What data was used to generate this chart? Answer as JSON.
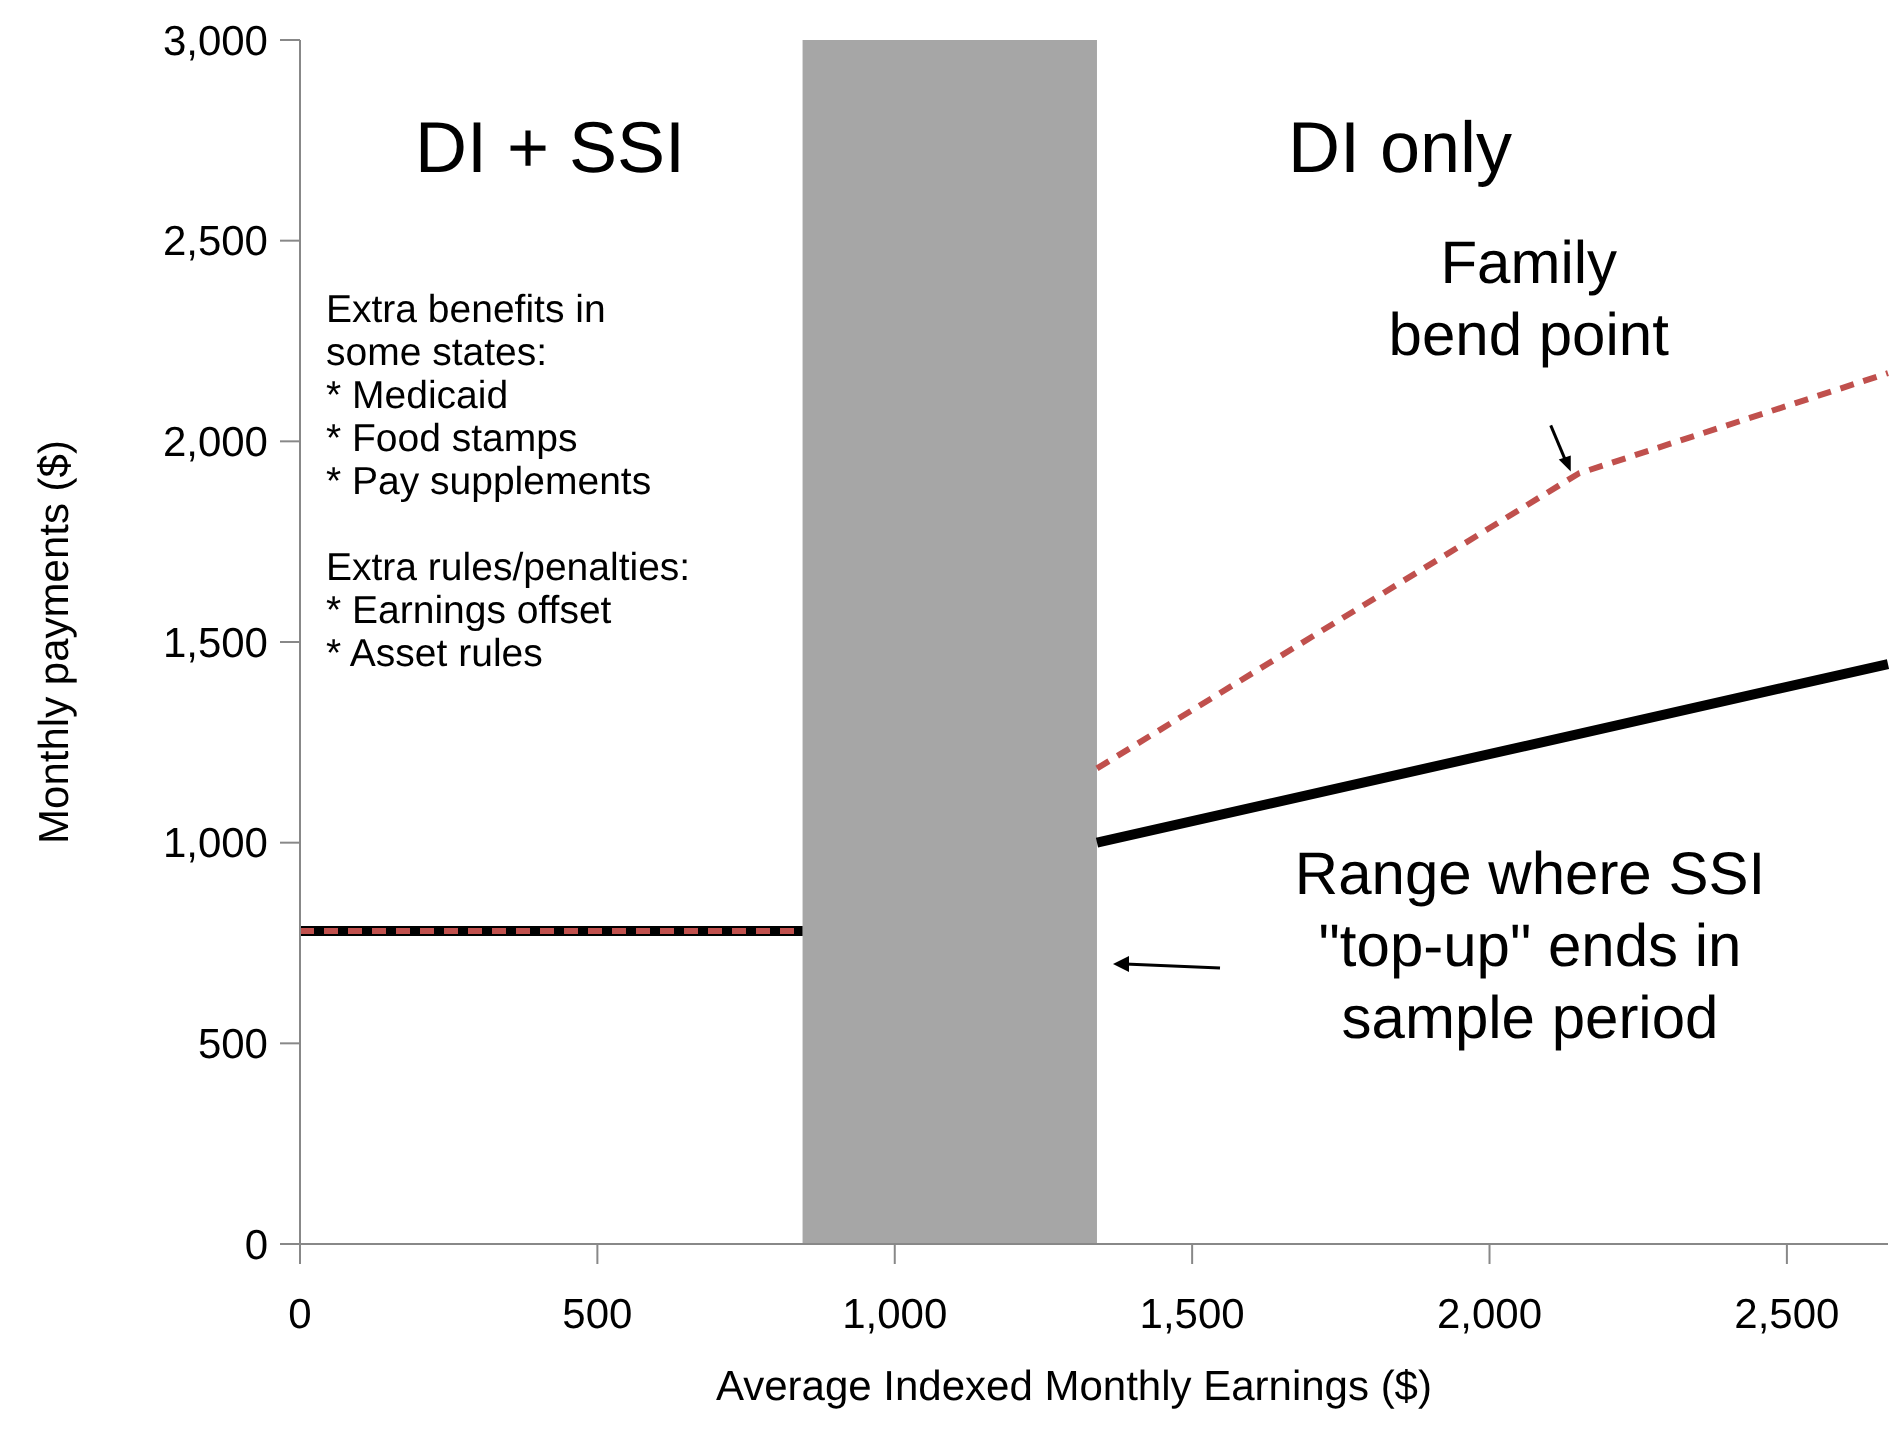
{
  "chart_data": {
    "type": "line",
    "xlabel": "Average Indexed Monthly Earnings ($)",
    "ylabel": "Monthly payments ($)",
    "xlim": [
      0,
      2670
    ],
    "xticks": [
      0,
      500,
      {
        "value": 1000,
        "label": "1,000"
      },
      {
        "value": 1500,
        "label": "1,500"
      },
      {
        "value": 2000,
        "label": "2,000"
      },
      {
        "value": 2500,
        "label": "2,500"
      }
    ],
    "ylim": [
      0,
      3000
    ],
    "yticks": [
      0,
      500,
      {
        "value": 1000,
        "label": "1,000"
      },
      {
        "value": 1500,
        "label": "1,500"
      },
      {
        "value": 2000,
        "label": "2,000"
      },
      {
        "value": 2500,
        "label": "2,500"
      },
      {
        "value": 3000,
        "label": "3,000"
      }
    ],
    "grid": false,
    "marker": "none",
    "series": [
      {
        "color": "#000000",
        "line_style": "solid",
        "x": [
          0,
          845,
          1090,
          1340,
          2670
        ],
        "values": [
          780,
          780,
          null,
          1000,
          1445
        ]
      },
      {
        "color": "#c0504d",
        "line_style": "dashed",
        "x": [
          0,
          845,
          1090,
          1340,
          2150,
          2670
        ],
        "values": [
          780,
          780,
          null,
          1185,
          1920,
          2170
        ]
      }
    ],
    "bands": [
      {
        "axis": "x",
        "from": 845,
        "to": 1340,
        "color": "#a6a6a6"
      }
    ],
    "annotations": [
      "DI + SSI",
      "DI only",
      "Extra benefits in\nsome states:\n* Medicaid\n* Food stamps\n* Pay supplements\n\nExtra rules/penalties:\n* Earnings offset\n* Asset rules",
      "Range where SSI\n\"top-up\" ends in\nsample period",
      {
        "text": "Family\nbend point",
        "x": 2150,
        "y": 1920
      }
    ]
  }
}
